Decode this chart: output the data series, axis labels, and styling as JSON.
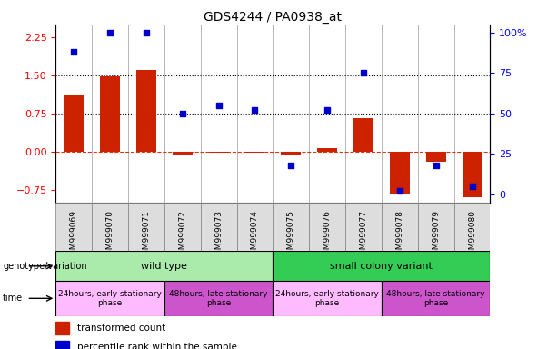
{
  "title": "GDS4244 / PA0938_at",
  "samples": [
    "GSM999069",
    "GSM999070",
    "GSM999071",
    "GSM999072",
    "GSM999073",
    "GSM999074",
    "GSM999075",
    "GSM999076",
    "GSM999077",
    "GSM999078",
    "GSM999079",
    "GSM999080"
  ],
  "bar_values": [
    1.1,
    1.48,
    1.6,
    -0.05,
    -0.02,
    -0.02,
    -0.05,
    0.07,
    0.65,
    -0.85,
    -0.2,
    -0.9
  ],
  "scatter_values": [
    88,
    100,
    100,
    50,
    55,
    52,
    18,
    52,
    75,
    2,
    18,
    5
  ],
  "bar_color": "#cc2200",
  "scatter_color": "#0000cc",
  "ylim_left": [
    -1.0,
    2.5
  ],
  "ylim_right": [
    -5,
    105
  ],
  "yticks_left": [
    -0.75,
    0,
    0.75,
    1.5,
    2.25
  ],
  "yticks_right": [
    0,
    25,
    50,
    75,
    100
  ],
  "genotype_groups": [
    {
      "label": "wild type",
      "start": 0,
      "end": 6,
      "color": "#aaeaaa"
    },
    {
      "label": "small colony variant",
      "start": 6,
      "end": 12,
      "color": "#33cc55"
    }
  ],
  "time_groups": [
    {
      "label": "24hours, early stationary\nphase",
      "start": 0,
      "end": 3,
      "color": "#ffbbff"
    },
    {
      "label": "48hours, late stationary\nphase",
      "start": 3,
      "end": 6,
      "color": "#cc55cc"
    },
    {
      "label": "24hours, early stationary\nphase",
      "start": 6,
      "end": 9,
      "color": "#ffbbff"
    },
    {
      "label": "48hours, late stationary\nphase",
      "start": 9,
      "end": 12,
      "color": "#cc55cc"
    }
  ],
  "legend_items": [
    {
      "label": "transformed count",
      "color": "#cc2200"
    },
    {
      "label": "percentile rank within the sample",
      "color": "#0000cc"
    }
  ]
}
